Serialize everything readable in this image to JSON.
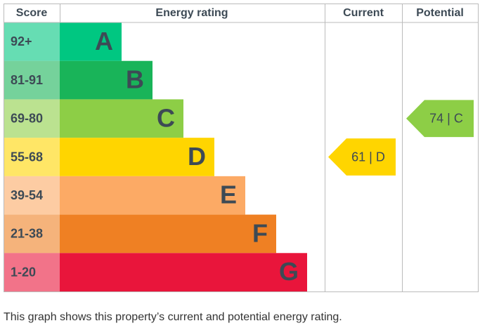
{
  "header": {
    "score": "Score",
    "rating": "Energy rating",
    "current": "Current",
    "potential": "Potential"
  },
  "bands": [
    {
      "range": "92+",
      "letter": "A",
      "color": "#00c781"
    },
    {
      "range": "81-91",
      "letter": "B",
      "color": "#19b459"
    },
    {
      "range": "69-80",
      "letter": "C",
      "color": "#8dce46"
    },
    {
      "range": "55-68",
      "letter": "D",
      "color": "#ffd500"
    },
    {
      "range": "39-54",
      "letter": "E",
      "color": "#fcaa65"
    },
    {
      "range": "21-38",
      "letter": "F",
      "color": "#ef8023"
    },
    {
      "range": "1-20",
      "letter": "G",
      "color": "#e9153b"
    }
  ],
  "current": "61 | D",
  "potential": "74 | C",
  "caption": "This graph shows this property’s current and potential energy rating."
}
